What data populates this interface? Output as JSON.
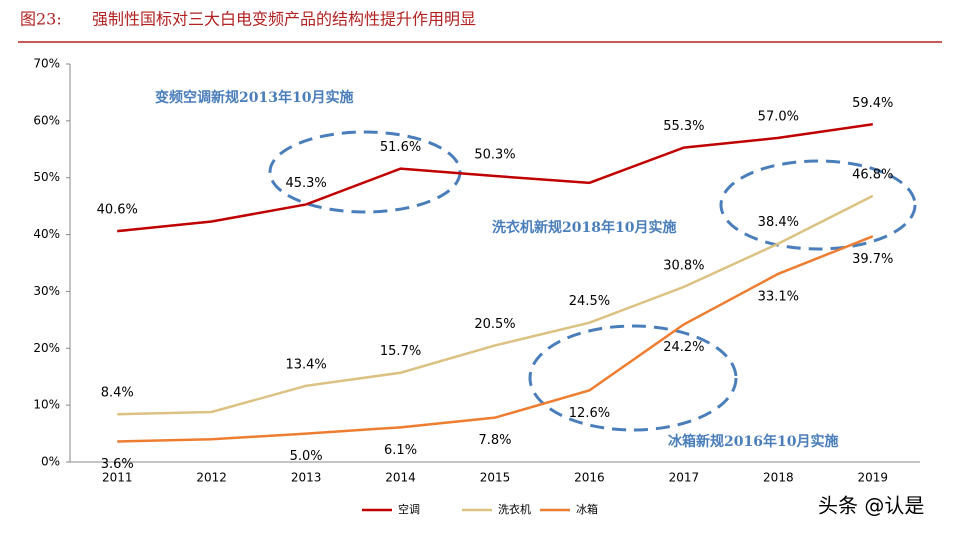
{
  "chart_data": {
    "type": "line",
    "figure_label": "图23:",
    "title": "强制性国标对三大白电变频产品的结构性提升作用明显",
    "categories": [
      "2011",
      "2012",
      "2013",
      "2014",
      "2015",
      "2016",
      "2017",
      "2018",
      "2019"
    ],
    "series": [
      {
        "name": "空调",
        "color": "#c00000",
        "values": [
          40.6,
          42.3,
          45.3,
          51.6,
          50.3,
          49.1,
          55.3,
          57.0,
          59.4
        ],
        "value_labels": [
          "40.6%",
          null,
          "45.3%",
          "51.6%",
          "50.3%",
          null,
          "55.3%",
          "57.0%",
          "59.4%"
        ]
      },
      {
        "name": "洗衣机",
        "color": "#dcc282",
        "values": [
          8.4,
          8.8,
          13.4,
          15.7,
          20.5,
          24.5,
          30.8,
          38.4,
          46.8
        ],
        "value_labels": [
          "8.4%",
          null,
          "13.4%",
          "15.7%",
          "20.5%",
          "24.5%",
          "30.8%",
          "38.4%",
          "46.8%"
        ]
      },
      {
        "name": "冰箱",
        "color": "#ed7d31",
        "values": [
          3.6,
          4.0,
          5.0,
          6.1,
          7.8,
          12.6,
          24.2,
          33.1,
          39.7
        ],
        "value_labels": [
          "3.6%",
          null,
          "5.0%",
          "6.1%",
          "7.8%",
          "12.6%",
          "24.2%",
          "33.1%",
          "39.7%"
        ]
      }
    ],
    "ylim": [
      0,
      70
    ],
    "yticks": [
      {
        "value": 0,
        "label": "0%"
      },
      {
        "value": 10,
        "label": "10%"
      },
      {
        "value": 20,
        "label": "20%"
      },
      {
        "value": 30,
        "label": "30%"
      },
      {
        "value": 40,
        "label": "40%"
      },
      {
        "value": 50,
        "label": "50%"
      },
      {
        "value": 60,
        "label": "60%"
      },
      {
        "value": 70,
        "label": "70%"
      }
    ],
    "annotations": [
      "变频空调新规2013年10月实施",
      "洗衣机新规2018年10月实施",
      "冰箱新规2016年10月实施"
    ],
    "legend": "bottom",
    "grid": false
  },
  "watermark": "头条 @认是"
}
